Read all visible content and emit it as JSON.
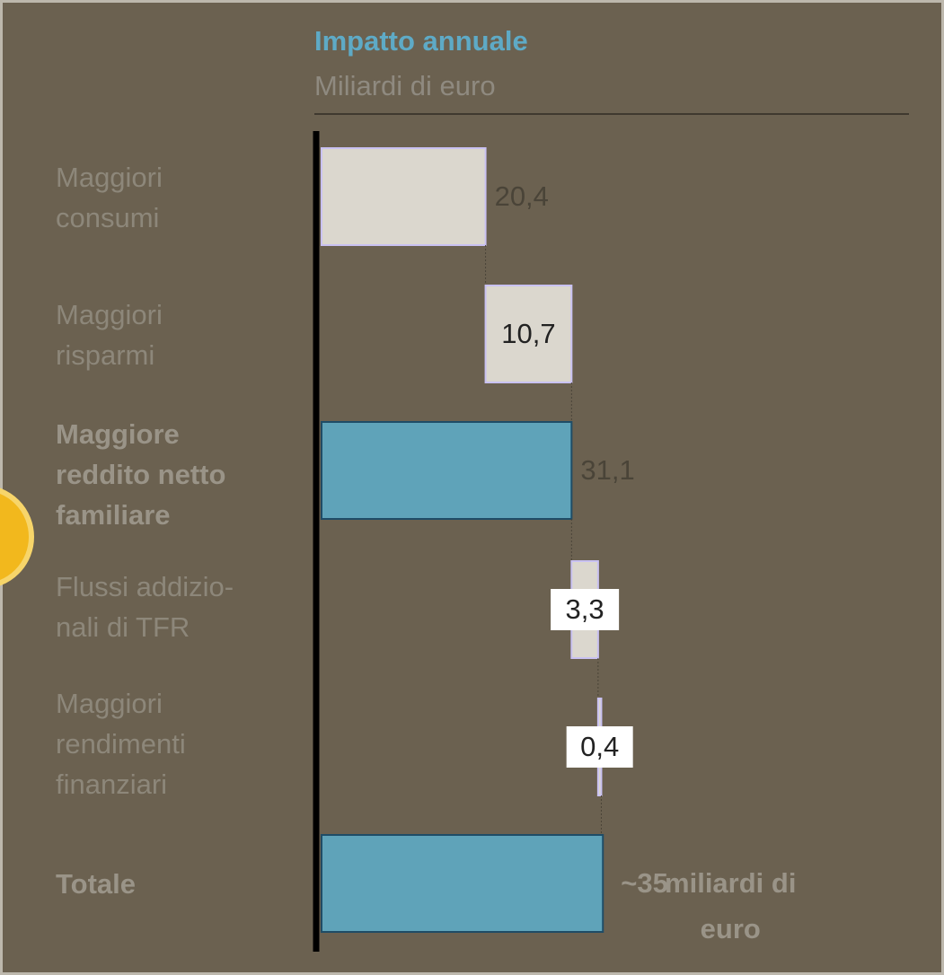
{
  "chart_data": {
    "type": "waterfall",
    "title": "Impatto annuale",
    "subtitle": "Miliardi di euro",
    "categories": [
      "Maggiori\nconsumi",
      "Maggiori\nrisparmi",
      "Maggiore\nreddito netto\nfamiliare",
      "Flussi addizio-\nnali di TFR",
      "Maggiori\nrendimenti\nfinanziari",
      "Totale"
    ],
    "measure": [
      "relative",
      "relative",
      "total",
      "relative",
      "relative",
      "total"
    ],
    "values": [
      20.4,
      10.7,
      31.1,
      3.3,
      0.4,
      35
    ],
    "value_labels": [
      "20,4",
      "10,7",
      "31,1",
      "3,3",
      "0,4",
      "~35"
    ],
    "total_unit": "miliardi di\neuro",
    "color": "#dbd7ce",
    "total_color": "#5fa3b9",
    "xlim": [
      0,
      40
    ]
  }
}
